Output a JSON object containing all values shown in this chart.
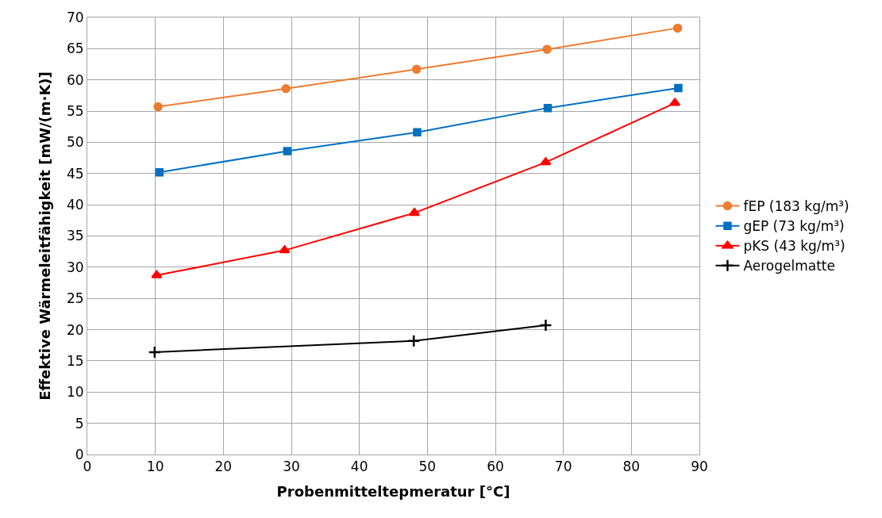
{
  "chart_data": {
    "type": "line",
    "xlabel": "Probenmitteltepmeratur [°C]",
    "ylabel": "Effektive Wärmeleitfähigkeit [mW/(m·K)]",
    "xlim": [
      0,
      90
    ],
    "xticks": [
      0,
      10,
      20,
      30,
      40,
      50,
      60,
      70,
      80,
      90
    ],
    "ylim": [
      0,
      70
    ],
    "yticks": [
      0,
      5,
      10,
      15,
      20,
      25,
      30,
      35,
      40,
      45,
      50,
      55,
      60,
      65,
      70
    ],
    "grid": true,
    "legend": "right",
    "series": [
      {
        "name": "fEP (183 kg/m³)",
        "color": "#ed7d31",
        "marker": "circle",
        "x": [
          10.4,
          29.2,
          48.4,
          67.6,
          86.8
        ],
        "values": [
          55.7,
          58.6,
          61.7,
          64.9,
          68.3
        ]
      },
      {
        "name": "gEP (73 kg/m³)",
        "color": "#0070c0",
        "marker": "square",
        "x": [
          10.6,
          29.4,
          48.5,
          67.7,
          86.9
        ],
        "values": [
          45.2,
          48.6,
          51.6,
          55.5,
          58.7
        ]
      },
      {
        "name": "pKS (43 kg/m³)",
        "color": "#ff0000",
        "marker": "triangle",
        "x": [
          10.2,
          29.0,
          48.1,
          67.4,
          86.4
        ],
        "values": [
          28.7,
          32.7,
          38.7,
          46.8,
          56.3
        ]
      },
      {
        "name": "Aerogelmatte",
        "color": "#000000",
        "marker": "cross",
        "x": [
          9.9,
          48.0,
          67.4
        ],
        "values": [
          16.4,
          18.2,
          20.7
        ]
      }
    ]
  }
}
